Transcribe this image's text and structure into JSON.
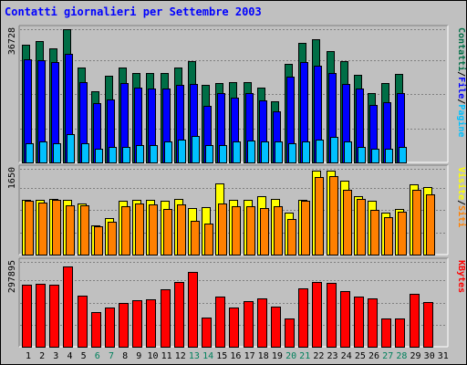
{
  "title": "Contatti giornalieri per Settembre 2003",
  "colors": {
    "background": "#c0c0c0",
    "title": "#0000ff",
    "hits": "#006e46",
    "files": "#0000ff",
    "pages": "#00c0ff",
    "visits": "#ffff00",
    "sites": "#ff8000",
    "kbytes": "#ff0000",
    "weekday_label": "#000000",
    "weekend_label": "#00805c",
    "grid": "#808080"
  },
  "chart_data": [
    {
      "type": "bar",
      "ylabel_parts": [
        {
          "text": "Pagine",
          "color": "#00c0ff"
        },
        {
          "text": "File",
          "color": "#0000ff"
        },
        {
          "text": "Contatti",
          "color": "#006e46"
        }
      ],
      "ymax_label": "36728",
      "ylim": [
        0,
        36728
      ],
      "categories": [
        "1",
        "2",
        "3",
        "4",
        "5",
        "6",
        "7",
        "8",
        "9",
        "10",
        "11",
        "12",
        "13",
        "14",
        "15",
        "16",
        "17",
        "18",
        "19",
        "20",
        "21",
        "22",
        "23",
        "24",
        "25",
        "26",
        "27",
        "28",
        "29",
        "30",
        "31"
      ],
      "series": [
        {
          "name": "Contatti",
          "color": "#006e46",
          "values": [
            32800,
            33800,
            31800,
            37300,
            26400,
            19900,
            24200,
            26400,
            25000,
            25000,
            25000,
            26400,
            28300,
            21700,
            22100,
            22500,
            22500,
            20800,
            17000,
            27500,
            33500,
            34500,
            31000,
            28300,
            24400,
            19500,
            22100,
            24700,
            0,
            0,
            0
          ]
        },
        {
          "name": "File",
          "color": "#0000ff",
          "values": [
            28800,
            28600,
            28000,
            30400,
            22500,
            16600,
            17700,
            22100,
            20800,
            20600,
            20600,
            21700,
            21900,
            15900,
            19500,
            18100,
            19500,
            17300,
            14200,
            24100,
            28000,
            27000,
            25000,
            21900,
            20600,
            16000,
            16900,
            19500,
            0,
            0,
            0
          ]
        },
        {
          "name": "Pagine",
          "color": "#00c0ff",
          "values": [
            5300,
            5800,
            5300,
            8000,
            5300,
            3800,
            4400,
            4400,
            4900,
            4900,
            5800,
            6400,
            7500,
            4900,
            4900,
            5800,
            6200,
            5800,
            5800,
            5300,
            5800,
            6400,
            7100,
            5800,
            4400,
            3800,
            3800,
            4400,
            0,
            0,
            0
          ]
        }
      ]
    },
    {
      "type": "bar",
      "ylabel_parts": [
        {
          "text": "Siti",
          "color": "#ff8000"
        },
        {
          "text": "Visite",
          "color": "#ffff00"
        }
      ],
      "ymax_label": "1650",
      "ylim": [
        0,
        1650
      ],
      "categories": [
        "1",
        "2",
        "3",
        "4",
        "5",
        "6",
        "7",
        "8",
        "9",
        "10",
        "11",
        "12",
        "13",
        "14",
        "15",
        "16",
        "17",
        "18",
        "19",
        "20",
        "21",
        "22",
        "23",
        "24",
        "25",
        "26",
        "27",
        "28",
        "29",
        "30",
        "31"
      ],
      "series": [
        {
          "name": "Visite",
          "color": "#ffff00",
          "values": [
            1080,
            1080,
            1100,
            1080,
            1010,
            570,
            710,
            1050,
            1080,
            1070,
            1050,
            1100,
            920,
            930,
            1390,
            1080,
            1080,
            1150,
            1100,
            820,
            1080,
            1650,
            1650,
            1450,
            1150,
            1050,
            820,
            900,
            1380,
            1320,
            0
          ]
        },
        {
          "name": "Siti",
          "color": "#ff8000",
          "values": [
            1050,
            1030,
            1080,
            960,
            960,
            550,
            640,
            950,
            1000,
            980,
            890,
            990,
            670,
            610,
            1010,
            950,
            950,
            920,
            950,
            700,
            1050,
            1520,
            1550,
            1280,
            1100,
            880,
            740,
            840,
            1280,
            1190,
            0
          ]
        }
      ]
    },
    {
      "type": "bar",
      "ylabel_parts": [
        {
          "text": "KBytes",
          "color": "#ff0000"
        }
      ],
      "ymax_label": "297895",
      "ylim": [
        0,
        297895
      ],
      "categories": [
        "1",
        "2",
        "3",
        "4",
        "5",
        "6",
        "7",
        "8",
        "9",
        "10",
        "11",
        "12",
        "13",
        "14",
        "15",
        "16",
        "17",
        "18",
        "19",
        "20",
        "21",
        "22",
        "23",
        "24",
        "25",
        "26",
        "27",
        "28",
        "29",
        "30",
        "31"
      ],
      "series": [
        {
          "name": "KBytes",
          "color": "#ff0000",
          "values": [
            221000,
            225000,
            221000,
            289000,
            183000,
            123000,
            141000,
            157000,
            167000,
            169000,
            205000,
            232000,
            267000,
            105000,
            179000,
            141000,
            163000,
            175000,
            144000,
            102000,
            208000,
            232000,
            228000,
            201000,
            181000,
            173000,
            102000,
            102000,
            190000,
            162000,
            0
          ]
        }
      ]
    }
  ]
}
